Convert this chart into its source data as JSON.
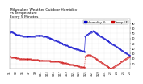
{
  "title": "Milwaukee Weather Outdoor Humidity\nvs Temperature\nEvery 5 Minutes",
  "title_fontsize": 3.2,
  "bg_color": "#ffffff",
  "plot_bg_color": "#ffffff",
  "grid_color": "#bbbbbb",
  "humidity_color": "#0000cc",
  "temperature_color": "#cc0000",
  "legend_humidity_color": "#0000cc",
  "legend_temperature_color": "#cc0000",
  "ylim": [
    0,
    100
  ],
  "yticks": [
    10,
    20,
    30,
    40,
    50,
    60,
    70,
    80,
    90
  ],
  "ytick_fontsize": 2.5,
  "xtick_fontsize": 2.2,
  "legend_fontsize": 2.8,
  "humidity_y": [
    72,
    73,
    74,
    73,
    72,
    71,
    70,
    69,
    68,
    68,
    67,
    67,
    67,
    67,
    66,
    66,
    66,
    65,
    65,
    65,
    65,
    65,
    65,
    64,
    64,
    64,
    64,
    64,
    65,
    65,
    65,
    65,
    65,
    65,
    66,
    66,
    66,
    66,
    66,
    66,
    66,
    66,
    66,
    66,
    65,
    65,
    65,
    64,
    64,
    63,
    63,
    62,
    61,
    61,
    60,
    60,
    59,
    58,
    58,
    57,
    57,
    56,
    55,
    54,
    54,
    53,
    52,
    52,
    51,
    50,
    50,
    49,
    48,
    48,
    47,
    46,
    46,
    45,
    44,
    44,
    43,
    43,
    42,
    42,
    41,
    41,
    40,
    40,
    39,
    39,
    38,
    38,
    37,
    37,
    36,
    36,
    35,
    35,
    34,
    34,
    65,
    66,
    67,
    68,
    69,
    70,
    71,
    72,
    73,
    74,
    75,
    74,
    73,
    72,
    71,
    70,
    69,
    68,
    67,
    66,
    65,
    64,
    63,
    62,
    61,
    60,
    59,
    58,
    57,
    56,
    55,
    54,
    53,
    52,
    51,
    50,
    49,
    48,
    47,
    46,
    45,
    44,
    43,
    42,
    41,
    40,
    39,
    38,
    37,
    36,
    35,
    34,
    33,
    32,
    31,
    30,
    29,
    28,
    27,
    26
  ],
  "temperature_y": [
    24,
    24,
    23,
    23,
    23,
    22,
    22,
    22,
    22,
    21,
    21,
    21,
    21,
    20,
    20,
    20,
    20,
    20,
    20,
    20,
    19,
    19,
    19,
    19,
    19,
    19,
    19,
    19,
    19,
    18,
    18,
    18,
    18,
    18,
    18,
    18,
    18,
    18,
    17,
    17,
    17,
    17,
    17,
    17,
    17,
    17,
    17,
    16,
    16,
    16,
    16,
    16,
    16,
    16,
    15,
    15,
    15,
    15,
    15,
    15,
    15,
    14,
    14,
    14,
    14,
    14,
    13,
    13,
    13,
    13,
    12,
    12,
    12,
    11,
    11,
    11,
    10,
    10,
    10,
    9,
    9,
    9,
    8,
    8,
    8,
    7,
    7,
    6,
    6,
    6,
    5,
    5,
    5,
    4,
    4,
    4,
    3,
    3,
    3,
    2,
    24,
    25,
    26,
    27,
    27,
    28,
    28,
    27,
    26,
    25,
    24,
    23,
    22,
    21,
    20,
    19,
    18,
    17,
    16,
    15,
    14,
    13,
    12,
    11,
    10,
    9,
    8,
    7,
    6,
    5,
    4,
    3,
    2,
    1,
    0,
    1,
    2,
    3,
    4,
    5,
    6,
    7,
    8,
    9,
    10,
    11,
    12,
    13,
    14,
    15,
    16,
    17,
    18,
    19,
    20,
    21,
    22,
    23,
    24,
    25
  ],
  "n_points": 160,
  "xtick_labels": [
    "1/1",
    "1/3",
    "1/5",
    "1/7",
    "1/9",
    "1/11",
    "1/13",
    "1/15",
    "1/17",
    "1/19",
    "1/21",
    "1/23",
    "1/25",
    "1/27",
    "1/29",
    "1/31",
    "2/2",
    "2/4",
    "2/6",
    "2/8"
  ],
  "legend_labels": [
    "Humidity %",
    "Temp °F"
  ]
}
